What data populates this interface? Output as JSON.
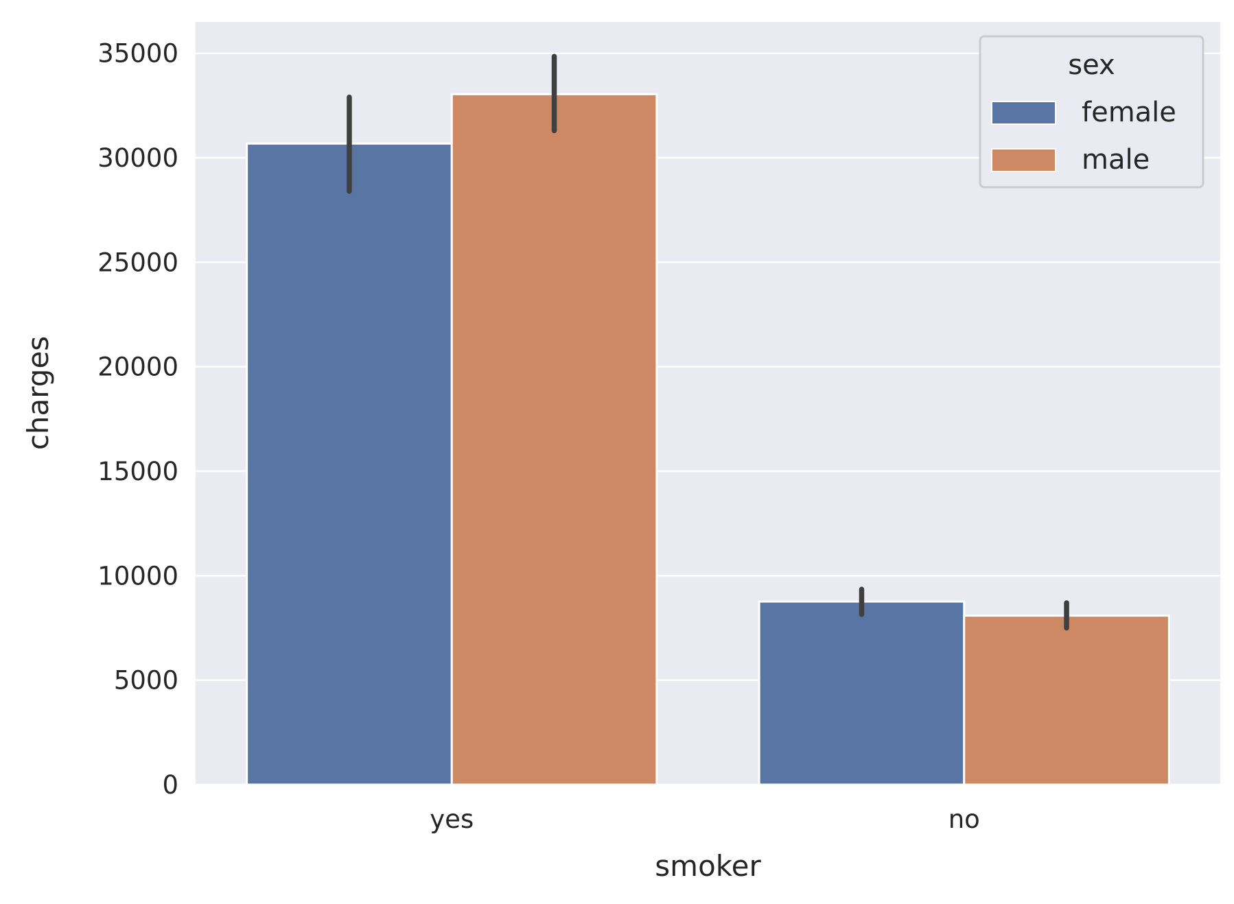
{
  "chart_data": {
    "type": "bar",
    "categories": [
      "yes",
      "no"
    ],
    "series": [
      {
        "name": "female",
        "color": "#5975a4",
        "values": [
          30679,
          8762
        ],
        "ci_low": [
          28400,
          8150
        ],
        "ci_high": [
          32900,
          9350
        ]
      },
      {
        "name": "male",
        "color": "#cc8963",
        "values": [
          33042,
          8087
        ],
        "ci_low": [
          31300,
          7500
        ],
        "ci_high": [
          34850,
          8700
        ]
      }
    ],
    "xlabel": "smoker",
    "ylabel": "charges",
    "ylim": [
      0,
      36500
    ],
    "yticks": [
      0,
      5000,
      10000,
      15000,
      20000,
      25000,
      30000,
      35000
    ],
    "grid": true,
    "background": "#eaeaf2",
    "errorbar_color": "#3f3f3f",
    "legend": {
      "title": "sex",
      "placement": "top-right",
      "entries": [
        "female",
        "male"
      ]
    }
  }
}
